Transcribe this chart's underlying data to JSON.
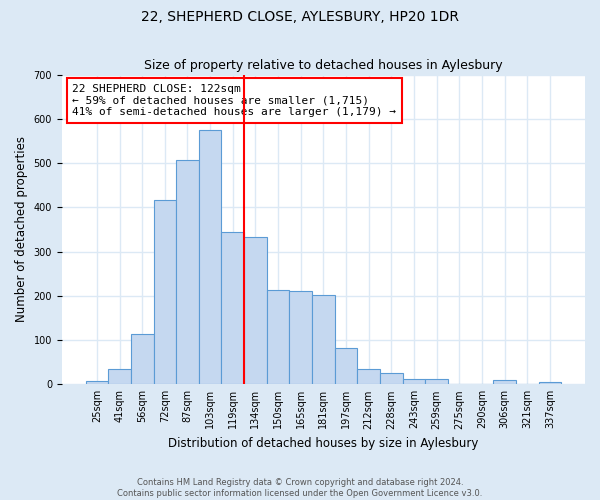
{
  "title": "22, SHEPHERD CLOSE, AYLESBURY, HP20 1DR",
  "subtitle": "Size of property relative to detached houses in Aylesbury",
  "xlabel": "Distribution of detached houses by size in Aylesbury",
  "ylabel": "Number of detached properties",
  "bar_labels": [
    "25sqm",
    "41sqm",
    "56sqm",
    "72sqm",
    "87sqm",
    "103sqm",
    "119sqm",
    "134sqm",
    "150sqm",
    "165sqm",
    "181sqm",
    "197sqm",
    "212sqm",
    "228sqm",
    "243sqm",
    "259sqm",
    "275sqm",
    "290sqm",
    "306sqm",
    "321sqm",
    "337sqm"
  ],
  "bar_values": [
    8,
    35,
    113,
    416,
    508,
    575,
    345,
    333,
    212,
    211,
    201,
    82,
    35,
    25,
    12,
    12,
    0,
    0,
    10,
    0,
    5
  ],
  "bar_color": "#c5d8f0",
  "bar_edge_color": "#5b9bd5",
  "bar_edge_width": 0.8,
  "vline_x": 6.5,
  "vline_color": "red",
  "vline_linewidth": 1.5,
  "ylim": [
    0,
    700
  ],
  "yticks": [
    0,
    100,
    200,
    300,
    400,
    500,
    600,
    700
  ],
  "annotation_title": "22 SHEPHERD CLOSE: 122sqm",
  "annotation_line1": "← 59% of detached houses are smaller (1,715)",
  "annotation_line2": "41% of semi-detached houses are larger (1,179) →",
  "annotation_box_color": "white",
  "annotation_box_edge_color": "red",
  "footer_line1": "Contains HM Land Registry data © Crown copyright and database right 2024.",
  "footer_line2": "Contains public sector information licensed under the Open Government Licence v3.0.",
  "fig_background_color": "#dce9f5",
  "plot_background_color": "#ffffff",
  "grid_color": "#dce9f5",
  "title_fontsize": 10,
  "subtitle_fontsize": 9,
  "xlabel_fontsize": 8.5,
  "ylabel_fontsize": 8.5,
  "tick_fontsize": 7,
  "footer_fontsize": 6,
  "annotation_fontsize": 8
}
